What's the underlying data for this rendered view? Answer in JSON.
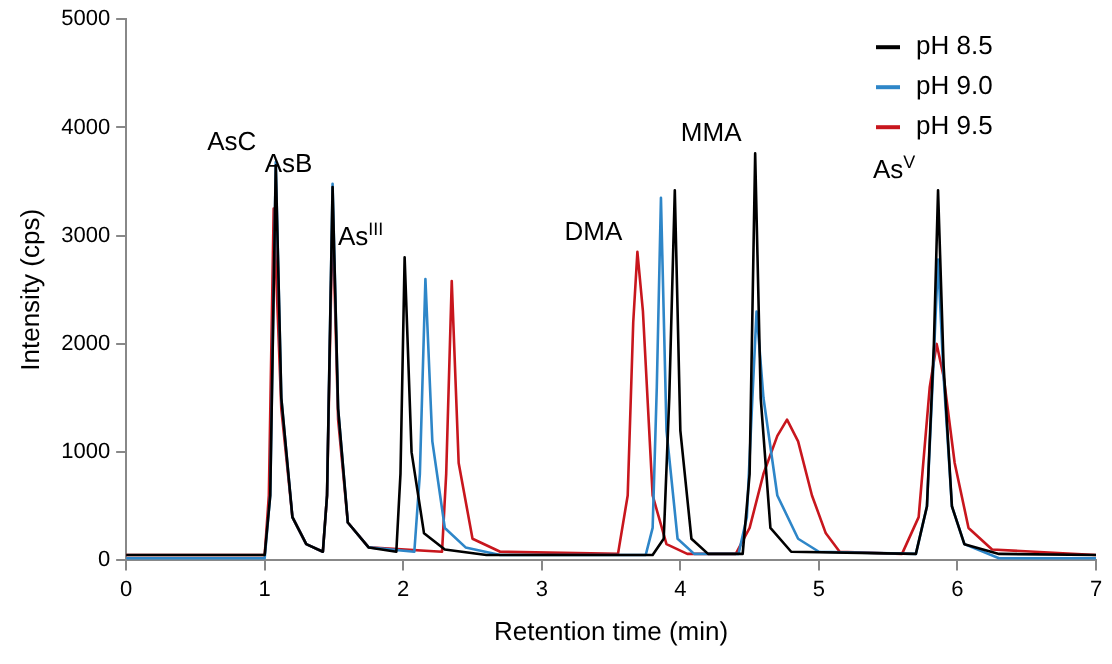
{
  "chart_data": {
    "type": "line",
    "xlabel": "Retention time (min)",
    "ylabel": "Intensity (cps)",
    "xlim": [
      0,
      7
    ],
    "xticks": [
      0,
      1,
      2,
      3,
      4,
      5,
      6,
      7
    ],
    "ylim": [
      0,
      5000
    ],
    "yticks": [
      0,
      1000,
      2000,
      3000,
      4000,
      5000
    ],
    "grid": false,
    "legend": "top right",
    "marker": "none",
    "line_style": "solid",
    "series": [
      {
        "name": "pH 8.5",
        "color": "#000000",
        "x": [
          0,
          1.0,
          1.04,
          1.08,
          1.12,
          1.2,
          1.3,
          1.42,
          1.45,
          1.49,
          1.53,
          1.6,
          1.75,
          1.95,
          1.98,
          2.01,
          2.06,
          2.15,
          2.3,
          2.6,
          3.8,
          3.88,
          3.92,
          3.96,
          4.0,
          4.08,
          4.2,
          4.45,
          4.5,
          4.54,
          4.58,
          4.65,
          4.8,
          5.7,
          5.78,
          5.83,
          5.86,
          5.9,
          5.96,
          6.05,
          6.3,
          7
        ],
        "values": [
          50,
          50,
          600,
          3650,
          1500,
          400,
          150,
          80,
          600,
          3450,
          1400,
          350,
          120,
          80,
          800,
          2800,
          1000,
          250,
          100,
          50,
          50,
          200,
          1500,
          3420,
          1200,
          200,
          60,
          60,
          800,
          3760,
          1500,
          300,
          80,
          60,
          500,
          2000,
          3420,
          1800,
          500,
          150,
          60,
          50
        ]
      },
      {
        "name": "pH 9.0",
        "color": "#2e86c8",
        "x": [
          0,
          1.0,
          1.04,
          1.08,
          1.12,
          1.2,
          1.3,
          1.42,
          1.45,
          1.49,
          1.53,
          1.6,
          1.75,
          2.08,
          2.12,
          2.16,
          2.21,
          2.3,
          2.45,
          2.7,
          3.75,
          3.8,
          3.83,
          3.86,
          3.9,
          3.98,
          4.1,
          4.42,
          4.48,
          4.52,
          4.55,
          4.6,
          4.7,
          4.85,
          5.0,
          5.7,
          5.78,
          5.83,
          5.86,
          5.9,
          5.96,
          6.05,
          6.3,
          7
        ],
        "values": [
          20,
          20,
          600,
          3680,
          1500,
          400,
          150,
          80,
          600,
          3480,
          1400,
          350,
          120,
          80,
          800,
          2600,
          1100,
          300,
          120,
          50,
          50,
          300,
          1600,
          3350,
          1200,
          200,
          60,
          60,
          400,
          1500,
          2300,
          1500,
          600,
          200,
          80,
          60,
          500,
          1900,
          2780,
          1700,
          500,
          150,
          20,
          20
        ]
      },
      {
        "name": "pH 9.5",
        "color": "#c8161d",
        "x": [
          0,
          1.0,
          1.03,
          1.065,
          1.12,
          1.2,
          1.3,
          1.42,
          1.45,
          1.49,
          1.53,
          1.6,
          1.75,
          2.28,
          2.31,
          2.35,
          2.4,
          2.5,
          2.7,
          3.55,
          3.62,
          3.66,
          3.69,
          3.73,
          3.8,
          3.9,
          4.05,
          4.4,
          4.5,
          4.6,
          4.7,
          4.77,
          4.85,
          4.95,
          5.05,
          5.15,
          5.6,
          5.72,
          5.8,
          5.85,
          5.9,
          5.98,
          6.08,
          6.25,
          7
        ],
        "values": [
          50,
          50,
          600,
          3250,
          1400,
          400,
          150,
          80,
          600,
          3200,
          1300,
          350,
          120,
          80,
          800,
          2580,
          900,
          200,
          80,
          60,
          600,
          2200,
          2850,
          2300,
          600,
          150,
          60,
          60,
          300,
          800,
          1150,
          1300,
          1100,
          600,
          250,
          80,
          60,
          400,
          1600,
          2000,
          1700,
          900,
          300,
          100,
          50
        ]
      }
    ],
    "annotations": [
      {
        "text": "AsC",
        "x": 1.08,
        "y": 3680
      },
      {
        "text": "AsB",
        "x": 1.49,
        "y": 3480
      },
      {
        "text": "As$^{III}$",
        "x": 2.01,
        "y": 2800
      },
      {
        "text": "DMA",
        "x": 3.69,
        "y": 2850
      },
      {
        "text": "MMA",
        "x": 4.54,
        "y": 3760
      },
      {
        "text": "As$^{V}$",
        "x": 5.86,
        "y": 3420
      }
    ]
  }
}
